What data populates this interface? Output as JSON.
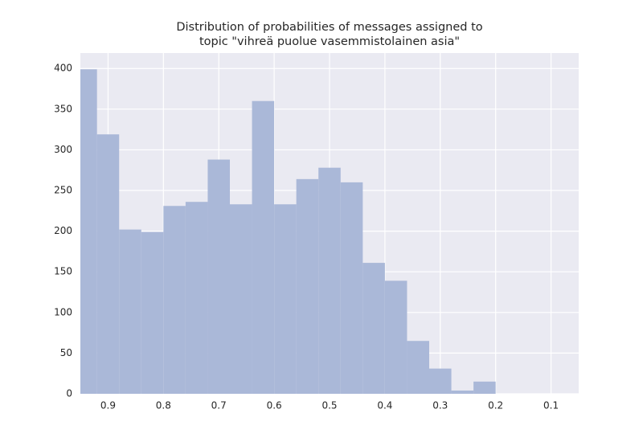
{
  "chart_data": {
    "type": "histogram",
    "title": [
      "Distribution of probabilities of messages assigned to",
      "topic \"vihreä puolue vasemmistolainen asia\""
    ],
    "bins": [
      0.2,
      0.24,
      0.28,
      0.32,
      0.36,
      0.4,
      0.44,
      0.48,
      0.52,
      0.56,
      0.6,
      0.64,
      0.68,
      0.72,
      0.76,
      0.8,
      0.84,
      0.88,
      0.92,
      0.96
    ],
    "values": [
      15,
      4,
      31,
      65,
      139,
      161,
      260,
      278,
      264,
      233,
      360,
      233,
      288,
      236,
      231,
      199,
      202,
      319,
      399
    ],
    "color": "#aab8d8",
    "xlim": [
      0.95,
      0.05
    ],
    "xticks": [
      0.9,
      0.8,
      0.7,
      0.6,
      0.5,
      0.4,
      0.3,
      0.2,
      0.1
    ],
    "ylim": [
      0,
      419
    ],
    "yticks": [
      0,
      50,
      100,
      150,
      200,
      250,
      300,
      350,
      400
    ],
    "grid": true
  }
}
